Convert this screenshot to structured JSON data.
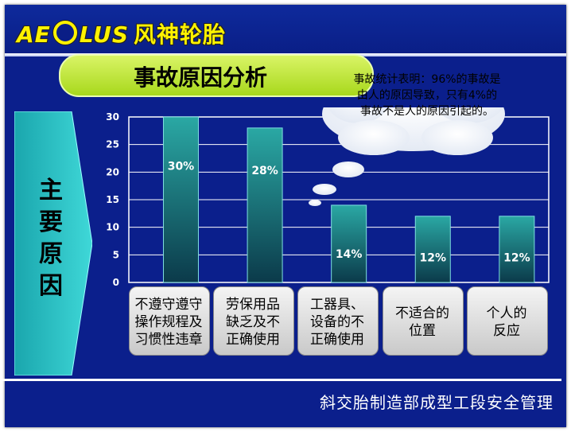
{
  "header": {
    "logo_text": "AE",
    "logo_text2": "LUS",
    "logo_cn": "风神轮胎"
  },
  "title": "事故原因分析",
  "side_label": [
    "主",
    "要",
    "原",
    "因"
  ],
  "callout": "事故统计表明：96%的事故是由人的原因导致，只有4%的事故不是人的原因引起的。",
  "footer": "斜交胎制造部成型工段安全管理",
  "colors": {
    "background": "#0b1f8c",
    "bar_top": "#2aa8a4",
    "bar_bottom": "#0b3a4a",
    "pill": "#b8e030",
    "arrow": "#25c0c4"
  },
  "chart_data": {
    "type": "bar",
    "categories": [
      "不遵守遵守操作规程及习惯性违章",
      "劳保用品缺乏及不正确使用",
      "工器具、设备的不正确使用",
      "不适合的位置",
      "个人的反应"
    ],
    "category_lines": [
      [
        "不遵守遵守",
        "操作规程及",
        "习惯性违章"
      ],
      [
        "劳保用品",
        "缺乏及不",
        "正确使用"
      ],
      [
        "工器具、",
        "设备的不",
        "正确使用"
      ],
      [
        "不适合的",
        "位置"
      ],
      [
        "个人的",
        "反应"
      ]
    ],
    "values": [
      30,
      28,
      14,
      12,
      12
    ],
    "labels": [
      "30%",
      "28%",
      "14%",
      "12%",
      "12%"
    ],
    "ylim": [
      0,
      30
    ],
    "yticks": [
      0,
      5,
      10,
      15,
      20,
      25,
      30
    ],
    "grid": true,
    "title": "",
    "xlabel": "",
    "ylabel": ""
  }
}
